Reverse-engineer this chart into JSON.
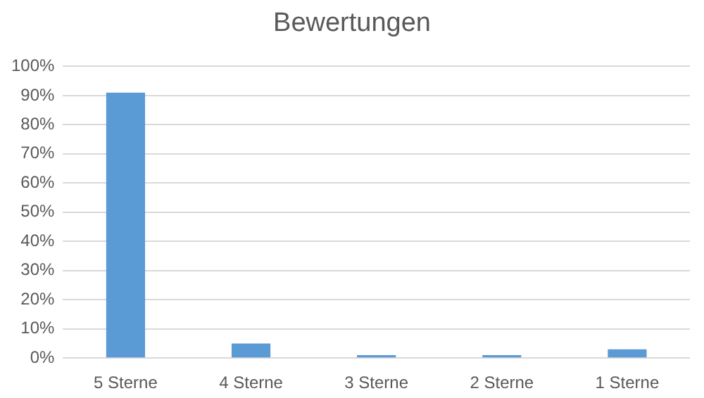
{
  "chart_data": {
    "type": "bar",
    "title": "Bewertungen",
    "categories": [
      "5 Sterne",
      "4 Sterne",
      "3 Sterne",
      "2 Sterne",
      "1 Sterne"
    ],
    "values": [
      91,
      5,
      1,
      1,
      3
    ],
    "color": "#5b9bd5",
    "ylim": [
      0,
      100
    ],
    "yticks": [
      {
        "value": 0,
        "label": "0%"
      },
      {
        "value": 10,
        "label": "10%"
      },
      {
        "value": 20,
        "label": "20%"
      },
      {
        "value": 30,
        "label": "30%"
      },
      {
        "value": 40,
        "label": "40%"
      },
      {
        "value": 50,
        "label": "50%"
      },
      {
        "value": 60,
        "label": "60%"
      },
      {
        "value": 70,
        "label": "70%"
      },
      {
        "value": 80,
        "label": "80%"
      },
      {
        "value": 90,
        "label": "90%"
      },
      {
        "value": 100,
        "label": "100%"
      }
    ],
    "grid": "y",
    "legend": false
  }
}
